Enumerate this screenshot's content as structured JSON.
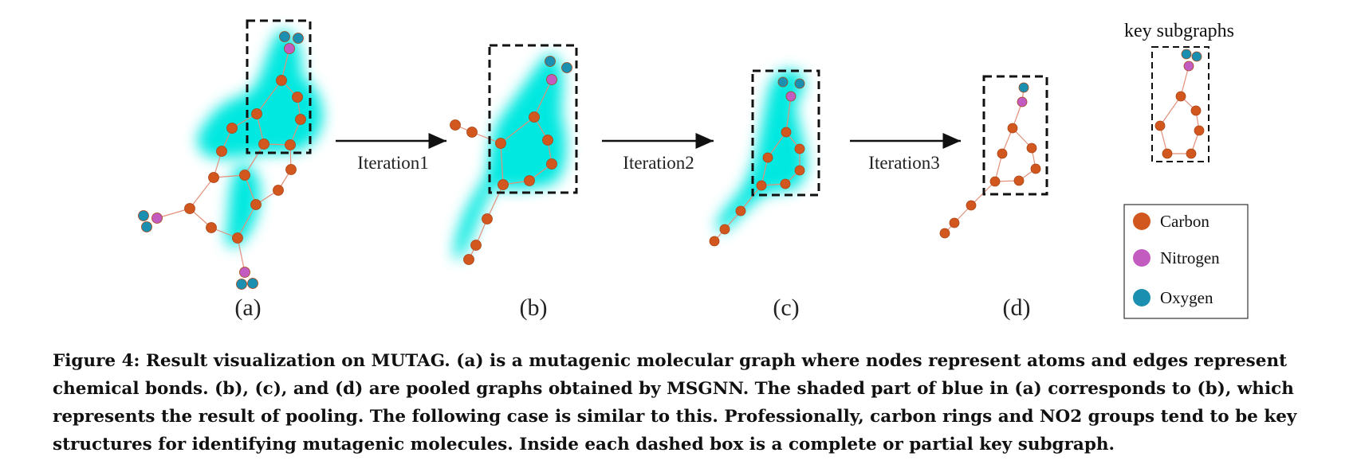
{
  "panels": [
    {
      "label": "(a)"
    },
    {
      "label": "(b)"
    },
    {
      "label": "(c)"
    },
    {
      "label": "(d)"
    }
  ],
  "iterations": [
    "Iteration1",
    "Iteration2",
    "Iteration3"
  ],
  "key_subgraphs_title": "key subgraphs",
  "legend": [
    {
      "name": "Carbon",
      "color": "#d2571f"
    },
    {
      "name": "Nitrogen",
      "color": "#c25cc0"
    },
    {
      "name": "Oxygen",
      "color": "#1a8fb0"
    }
  ],
  "colors": {
    "shade": "#00e8e0",
    "bond": "#e2907a",
    "box": "#111111"
  },
  "caption": {
    "text": "Figure 4: Result visualization on MUTAG. (a) is a mutagenic molecular graph where nodes represent atoms and edges represent chemical bonds. (b), (c), and (d) are pooled graphs obtained by MSGNN. The shaded part of blue in (a) corresponds to (b), which represents the result of pooling. The following case is similar to this. Professionally, carbon rings and NO2 groups tend to be key structures for identifying mutagenic molecules. Inside each dashed box is a complete or partial key subgraph."
  }
}
